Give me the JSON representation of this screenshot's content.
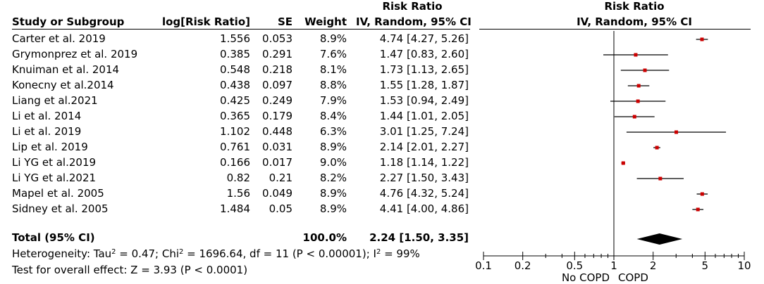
{
  "headers": {
    "study": "Study or Subgroup",
    "log_rr": "log[Risk Ratio]",
    "se": "SE",
    "weight": "Weight",
    "rr_title": "Risk Ratio",
    "rr_method": "IV, Random, 95% CI",
    "plot_title": "Risk Ratio",
    "plot_method": "IV, Random, 95% CI"
  },
  "studies": [
    {
      "name": "Carter et al. 2019",
      "log_rr": "1.556",
      "se": "0.053",
      "weight": "8.9%",
      "ci_text": "4.74 [4.27, 5.26]"
    },
    {
      "name": "Grymonprez et al. 2019",
      "log_rr": "0.385",
      "se": "0.291",
      "weight": "7.6%",
      "ci_text": "1.47 [0.83, 2.60]"
    },
    {
      "name": "Knuiman et al. 2014",
      "log_rr": "0.548",
      "se": "0.218",
      "weight": "8.1%",
      "ci_text": "1.73 [1.13, 2.65]"
    },
    {
      "name": "Konecny et al.2014",
      "log_rr": "0.438",
      "se": "0.097",
      "weight": "8.8%",
      "ci_text": "1.55 [1.28, 1.87]"
    },
    {
      "name": "Liang et al.2021",
      "log_rr": "0.425",
      "se": "0.249",
      "weight": "7.9%",
      "ci_text": "1.53 [0.94, 2.49]"
    },
    {
      "name": "Li et al. 2014",
      "log_rr": "0.365",
      "se": "0.179",
      "weight": "8.4%",
      "ci_text": "1.44 [1.01, 2.05]"
    },
    {
      "name": "Li et al. 2019",
      "log_rr": "1.102",
      "se": "0.448",
      "weight": "6.3%",
      "ci_text": "3.01 [1.25, 7.24]"
    },
    {
      "name": "Lip et al. 2019",
      "log_rr": "0.761",
      "se": "0.031",
      "weight": "8.9%",
      "ci_text": "2.14 [2.01, 2.27]"
    },
    {
      "name": "Li YG et al.2019",
      "log_rr": "0.166",
      "se": "0.017",
      "weight": "9.0%",
      "ci_text": "1.18 [1.14, 1.22]"
    },
    {
      "name": "Li YG et al.2021",
      "log_rr": "0.82",
      "se": "0.21",
      "weight": "8.2%",
      "ci_text": "2.27 [1.50, 3.43]"
    },
    {
      "name": "Mapel et al. 2005",
      "log_rr": "1.56",
      "se": "0.049",
      "weight": "8.9%",
      "ci_text": "4.76 [4.32, 5.24]"
    },
    {
      "name": "Sidney et al. 2005",
      "log_rr": "1.484",
      "se": "0.05",
      "weight": "8.9%",
      "ci_text": "4.41 [4.00, 4.86]"
    }
  ],
  "total": {
    "label": "Total (95% CI)",
    "weight": "100.0%",
    "ci_text": "2.24 [1.50, 3.35]"
  },
  "heterogeneity": {
    "prefix": "Heterogeneity: Tau",
    "tau_sup": "2",
    "tau_val": " = 0.47; Chi",
    "chi_sup": "2",
    "chi_val": " = 1696.64, df = 11 (P < 0.00001); I",
    "i_sup": "2",
    "i_val": " = 99%"
  },
  "overall_effect": "Test for overall effect: Z = 3.93 (P < 0.0001)",
  "colors": {
    "marker": "#cc0000",
    "line": "#000000",
    "diamond": "#000000"
  },
  "chart_data": {
    "type": "forest",
    "title": "Risk Ratio",
    "subtitle": "IV, Random, 95% CI",
    "x_scale": "log",
    "xlim": [
      0.1,
      10
    ],
    "x_ticks": [
      0.1,
      0.2,
      0.5,
      1,
      2,
      5,
      10
    ],
    "x_tick_labels": [
      "0.1",
      "0.2",
      "0.5",
      "1",
      "2",
      "5",
      "10"
    ],
    "reference_line": 1,
    "left_label": "No COPD",
    "right_label": "COPD",
    "points": [
      {
        "study": "Carter et al. 2019",
        "rr": 4.74,
        "lo": 4.27,
        "hi": 5.26
      },
      {
        "study": "Grymonprez et al. 2019",
        "rr": 1.47,
        "lo": 0.83,
        "hi": 2.6
      },
      {
        "study": "Knuiman et al. 2014",
        "rr": 1.73,
        "lo": 1.13,
        "hi": 2.65
      },
      {
        "study": "Konecny et al.2014",
        "rr": 1.55,
        "lo": 1.28,
        "hi": 1.87
      },
      {
        "study": "Liang et al.2021",
        "rr": 1.53,
        "lo": 0.94,
        "hi": 2.49
      },
      {
        "study": "Li et al. 2014",
        "rr": 1.44,
        "lo": 1.01,
        "hi": 2.05
      },
      {
        "study": "Li et al. 2019",
        "rr": 3.01,
        "lo": 1.25,
        "hi": 7.24
      },
      {
        "study": "Lip et al. 2019",
        "rr": 2.14,
        "lo": 2.01,
        "hi": 2.27
      },
      {
        "study": "Li YG et al.2019",
        "rr": 1.18,
        "lo": 1.14,
        "hi": 1.22
      },
      {
        "study": "Li YG et al.2021",
        "rr": 2.27,
        "lo": 1.5,
        "hi": 3.43
      },
      {
        "study": "Mapel et al. 2005",
        "rr": 4.76,
        "lo": 4.32,
        "hi": 5.24
      },
      {
        "study": "Sidney et al. 2005",
        "rr": 4.41,
        "lo": 4.0,
        "hi": 4.86
      }
    ],
    "pooled": {
      "rr": 2.24,
      "lo": 1.5,
      "hi": 3.35
    }
  }
}
